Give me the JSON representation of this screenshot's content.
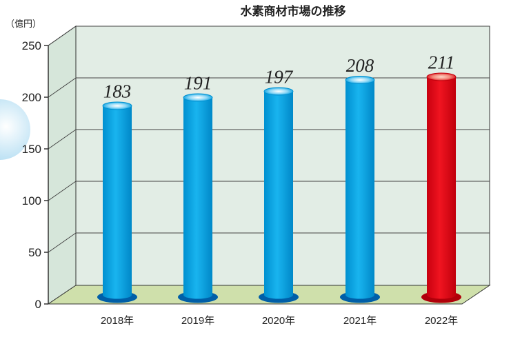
{
  "chart_data": {
    "type": "bar",
    "title": "水素商材市場の推移",
    "unit_label": "（億円）",
    "categories": [
      "2018年",
      "2019年",
      "2020年",
      "2021年",
      "2022年"
    ],
    "values": [
      183,
      191,
      197,
      208,
      211
    ],
    "value_labels": [
      "183",
      "191",
      "197",
      "208",
      "211"
    ],
    "yticks": [
      "0",
      "50",
      "100",
      "150",
      "200",
      "250"
    ],
    "ylim": [
      0,
      250
    ],
    "grid": true,
    "colors": {
      "bar": "#00a6e6",
      "bar_highlight": "#e60012",
      "wall": "#e2ede5",
      "floor": "#cfe0ab"
    }
  }
}
